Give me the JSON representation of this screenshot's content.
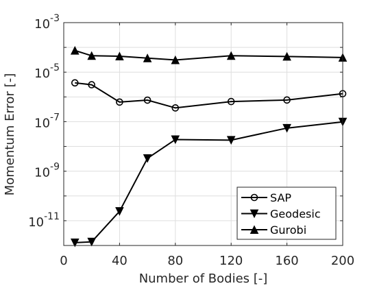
{
  "chart_data": {
    "type": "line",
    "xlabel": "Number of Bodies [-]",
    "ylabel": "Momentum Error [-]",
    "xlim": [
      0,
      200
    ],
    "ylim": [
      1e-12,
      0.001
    ],
    "yscale": "log",
    "grid": true,
    "legend_position": "bottom-right",
    "x_ticks": [
      "0",
      "40",
      "80",
      "120",
      "160",
      "200"
    ],
    "y_ticks": [
      {
        "base": "10",
        "exp": "-11"
      },
      {
        "base": "10",
        "exp": "-9"
      },
      {
        "base": "10",
        "exp": "-7"
      },
      {
        "base": "10",
        "exp": "-5"
      },
      {
        "base": "10",
        "exp": "-3"
      }
    ],
    "series": [
      {
        "name": "SAP",
        "marker": "circle",
        "x": [
          8,
          20,
          40,
          60,
          80,
          120,
          160,
          200
        ],
        "y": [
          3.7e-06,
          3.1e-06,
          6.2e-07,
          7.4e-07,
          3.6e-07,
          6.5e-07,
          7.5e-07,
          1.35e-06
        ]
      },
      {
        "name": "Geodesic",
        "marker": "triangle-down",
        "x": [
          8,
          20,
          40,
          60,
          80,
          120,
          160,
          200
        ],
        "y": [
          1.3e-12,
          1.4e-12,
          2.4e-11,
          3.3e-09,
          1.9e-08,
          1.8e-08,
          5.5e-08,
          9.8e-08
        ]
      },
      {
        "name": "Gurobi",
        "marker": "triangle-up",
        "x": [
          8,
          20,
          40,
          60,
          80,
          120,
          160,
          200
        ],
        "y": [
          7.5e-05,
          4.6e-05,
          4.4e-05,
          3.7e-05,
          3.1e-05,
          4.6e-05,
          4.3e-05,
          3.9e-05
        ]
      }
    ]
  }
}
